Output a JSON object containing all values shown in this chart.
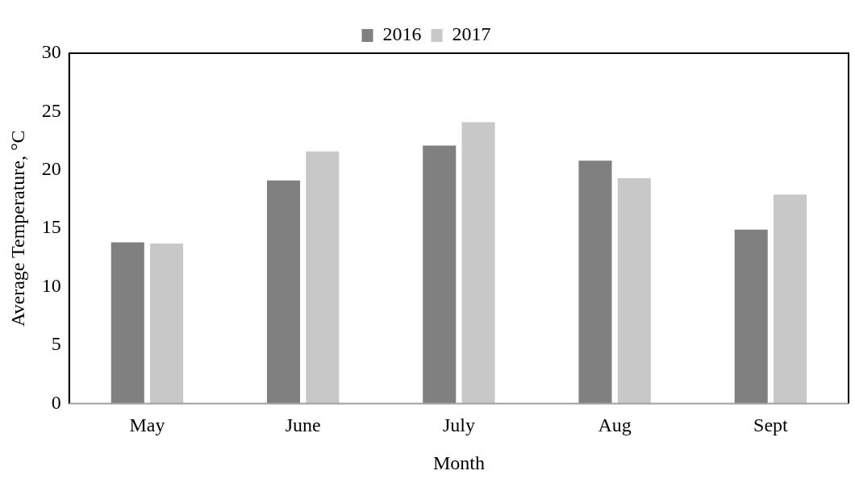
{
  "chart_data": {
    "type": "bar",
    "xlabel": "Month",
    "ylabel": "Average Temperature, °C",
    "categories": [
      "May",
      "June",
      "July",
      "Aug",
      "Sept"
    ],
    "series": [
      {
        "name": "2016",
        "color": "#808080",
        "values": [
          13.8,
          19.1,
          22.1,
          20.8,
          14.9
        ]
      },
      {
        "name": "2017",
        "color": "#c8c8c8",
        "values": [
          13.7,
          21.6,
          24.1,
          19.3,
          17.9
        ]
      }
    ],
    "ylim": [
      0,
      30
    ],
    "yticks": [
      0,
      5,
      10,
      15,
      20,
      25,
      30
    ],
    "grid": false,
    "legend": "top"
  }
}
